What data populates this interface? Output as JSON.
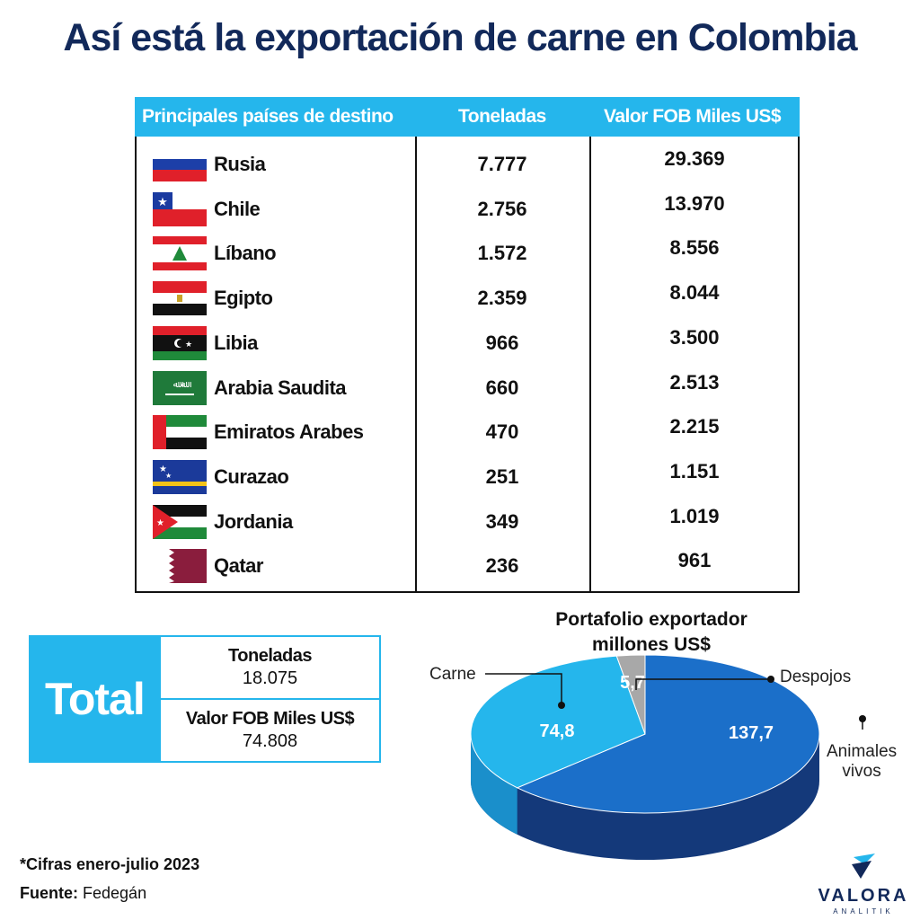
{
  "title": "Así está la exportación de carne en Colombia",
  "table": {
    "headers": [
      "Principales países de destino",
      "Toneladas",
      "Valor FOB Miles US$"
    ],
    "rows": [
      {
        "country": "Rusia",
        "ton": "7.777",
        "fob": "29.369",
        "flag": "russia-flag"
      },
      {
        "country": "Chile",
        "ton": "2.756",
        "fob": "13.970",
        "flag": "chile-flag"
      },
      {
        "country": "Líbano",
        "ton": "1.572",
        "fob": "8.556",
        "flag": "lebanon-flag"
      },
      {
        "country": "Egipto",
        "ton": "2.359",
        "fob": "8.044",
        "flag": "egypt-flag"
      },
      {
        "country": "Libia",
        "ton": "966",
        "fob": "3.500",
        "flag": "libya-flag"
      },
      {
        "country": "Arabia Saudita",
        "ton": "660",
        "fob": "2.513",
        "flag": "saudi-arabia-flag"
      },
      {
        "country": "Emiratos Arabes",
        "ton": "470",
        "fob": "2.215",
        "flag": "uae-flag"
      },
      {
        "country": "Curazao",
        "ton": "251",
        "fob": "1.151",
        "flag": "curacao-flag"
      },
      {
        "country": "Jordania",
        "ton": "349",
        "fob": "1.019",
        "flag": "jordan-flag"
      },
      {
        "country": "Qatar",
        "ton": "236",
        "fob": "961",
        "flag": "qatar-flag"
      }
    ]
  },
  "total": {
    "label": "Total",
    "ton_header": "Toneladas",
    "ton_value": "18.075",
    "fob_header": "Valor FOB Miles US$",
    "fob_value": "74.808"
  },
  "pie_title_line1": "Portafolio exportador",
  "pie_title_line2": "millones US$",
  "chart_data": {
    "type": "pie",
    "title": "Portafolio exportador millones US$",
    "slices": [
      {
        "label": "Animales vivos",
        "value": 137.7,
        "value_label": "137,7",
        "color": "#1b6fc9"
      },
      {
        "label": "Carne",
        "value": 74.8,
        "value_label": "74,8",
        "color": "#25b6ec"
      },
      {
        "label": "Despojos",
        "value": 5.7,
        "value_label": "5,7",
        "color": "#a8a8a8"
      }
    ]
  },
  "pie_labels": {
    "carne": "Carne",
    "despojos": "Despojos",
    "animales_line1": "Animales",
    "animales_line2": "vivos"
  },
  "footnote": "*Cifras enero-julio 2023",
  "source_label": "Fuente:",
  "source_value": "Fedegán",
  "logo": {
    "name": "VALORA",
    "sub": "ANALITIK"
  },
  "colors": {
    "accent": "#25b6ec",
    "title": "#12295a",
    "pie_dark": "#1b6fc9",
    "pie_side": "#14397a"
  }
}
